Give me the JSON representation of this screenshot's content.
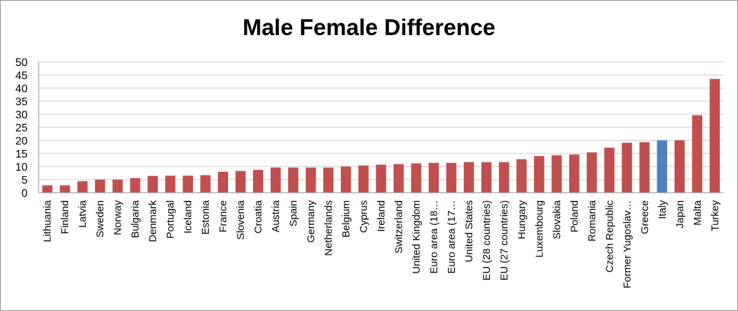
{
  "chart_data": {
    "type": "bar",
    "title": "Male Female Difference",
    "xlabel": "",
    "ylabel": "",
    "ylim": [
      0,
      50
    ],
    "yticks": [
      0,
      5,
      10,
      15,
      20,
      25,
      30,
      35,
      40,
      45,
      50
    ],
    "grid": true,
    "legend": "none",
    "colors": {
      "default": "#c0504d",
      "highlight": "#4f81bd",
      "grid": "#c8c8c8",
      "axis": "#8c8c8c"
    },
    "highlight_category": "Italy",
    "categories": [
      "Lithuania",
      "Finland",
      "Latvia",
      "Sweden",
      "Norway",
      "Bulgaria",
      "Denmark",
      "Portugal",
      "Iceland",
      "Estonia",
      "France",
      "Slovenia",
      "Croatia",
      "Austria",
      "Spain",
      "Germany",
      "Netherlands",
      "Belgium",
      "Cyprus",
      "Ireland",
      "Switzerland",
      "United Kingdom",
      "Euro area (18…",
      "Euro area (17…",
      "United States",
      "EU (28 countries)",
      "EU (27 countries)",
      "Hungary",
      "Luxembourg",
      "Slovakia",
      "Poland",
      "Romania",
      "Czech Republic",
      "Former Yugoslav…",
      "Greece",
      "Italy",
      "Japan",
      "Malta",
      "Turkey"
    ],
    "values": [
      2.8,
      2.8,
      4.4,
      5.0,
      5.0,
      5.6,
      6.4,
      6.5,
      6.5,
      6.7,
      8.0,
      8.3,
      8.7,
      9.6,
      9.6,
      9.6,
      9.6,
      10.0,
      10.4,
      10.7,
      10.9,
      11.2,
      11.4,
      11.4,
      11.7,
      11.7,
      11.7,
      12.8,
      14.0,
      14.3,
      14.6,
      15.4,
      17.2,
      19.1,
      19.3,
      20.0,
      20.0,
      29.6,
      43.5
    ]
  }
}
